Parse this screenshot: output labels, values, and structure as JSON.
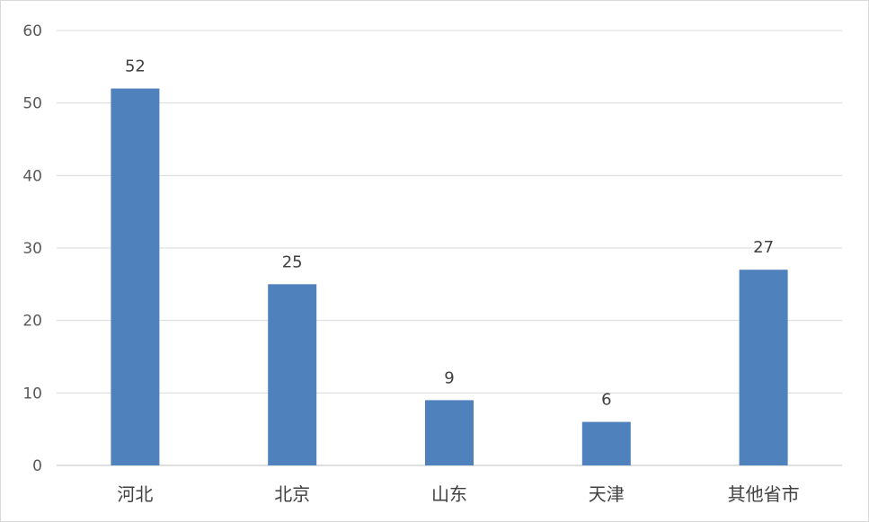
{
  "chart_data": {
    "type": "bar",
    "title": "",
    "xlabel": "",
    "ylabel": "",
    "categories": [
      "河北",
      "北京",
      "山东",
      "天津",
      "其他省市"
    ],
    "values": [
      52,
      25,
      9,
      6,
      27
    ],
    "data_labels": [
      "52",
      "25",
      "9",
      "6",
      "27"
    ],
    "ylim": [
      0,
      60
    ],
    "yticks": [
      0,
      10,
      20,
      30,
      40,
      50,
      60
    ],
    "ytick_labels": [
      "0",
      "10",
      "20",
      "30",
      "40",
      "50",
      "60"
    ],
    "grid": true,
    "legend": "none",
    "bar_color": "#4f81bd"
  }
}
